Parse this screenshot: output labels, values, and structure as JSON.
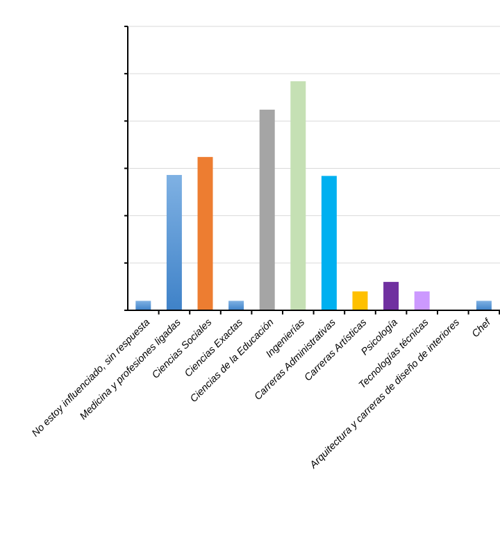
{
  "chart_data": {
    "type": "bar",
    "categories": [
      "No estoy influenciado, sin respuesta",
      "Medicina y profesiones ligadas",
      "Ciencias Sociales",
      "Ciencias Exactas",
      "Ciencias de la Educación",
      "Ingenierías",
      "Carreras Administrativas",
      "Carreras Artísticas",
      "Psicología",
      "Tecnologías técnicas",
      "Arquitectura y carreras de diseño de interiores",
      "Chef"
    ],
    "values": [
      1,
      14.3,
      16.2,
      1,
      21.2,
      24.2,
      14.2,
      2,
      3,
      2,
      0,
      1
    ],
    "colors": [
      "#5b9bd5",
      "#5b9bd5",
      "#ed7d31",
      "#5b9bd5",
      "#a5a5a5",
      "#c5e0b4",
      "#00b0f0",
      "#ffc000",
      "#7030a0",
      "#cc99ff",
      "#5b9bd5",
      "#5b9bd5"
    ],
    "ylim": [
      0,
      30
    ],
    "y_ticks": [
      0,
      5,
      10,
      15,
      20,
      25,
      30
    ],
    "grid": true,
    "title": "",
    "xlabel": "",
    "ylabel": ""
  }
}
